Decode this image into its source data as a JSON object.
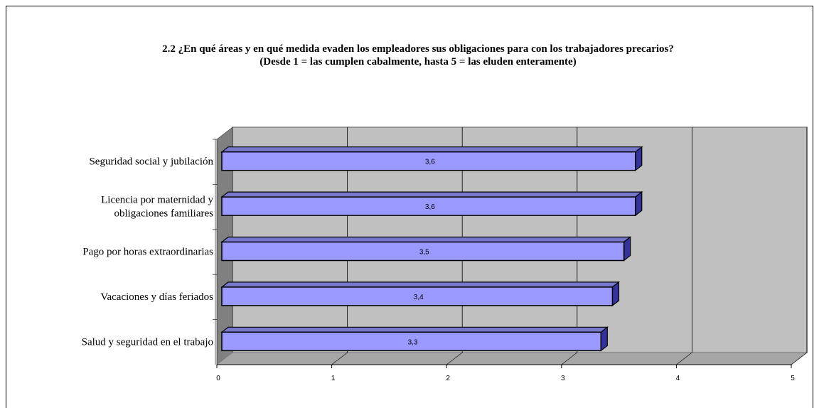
{
  "chart_data": {
    "type": "bar",
    "orientation": "horizontal",
    "three_d": true,
    "title": "2.2  ¿En qué áreas y en qué medida evaden los empleadores sus obligaciones para con los trabajadores precarios?",
    "subtitle": "(Desde 1 = las cumplen cabalmente, hasta 5 = las eluden enteramente)",
    "categories": [
      [
        "Seguridad social y jubilación"
      ],
      [
        "Licencia por maternidad y",
        "obligaciones familiares"
      ],
      [
        "Pago por horas extraordinarias"
      ],
      [
        "Vacaciones y días feriados"
      ],
      [
        "Salud y seguridad en el trabajo"
      ]
    ],
    "values": [
      3.6,
      3.6,
      3.5,
      3.4,
      3.3
    ],
    "data_labels": [
      "3,6",
      "3,6",
      "3,5",
      "3,4",
      "3,3"
    ],
    "xlim": [
      0,
      5
    ],
    "x_ticks": [
      "0",
      "1",
      "2",
      "3",
      "4",
      "5"
    ],
    "grid": true,
    "colors": {
      "bar": "#9999ff",
      "bar_top": "#7777cc",
      "bar_side": "#333399",
      "plot_wall": "#c0c0c0",
      "floor": "#a6a6a6",
      "side_wall": "#808080"
    }
  }
}
